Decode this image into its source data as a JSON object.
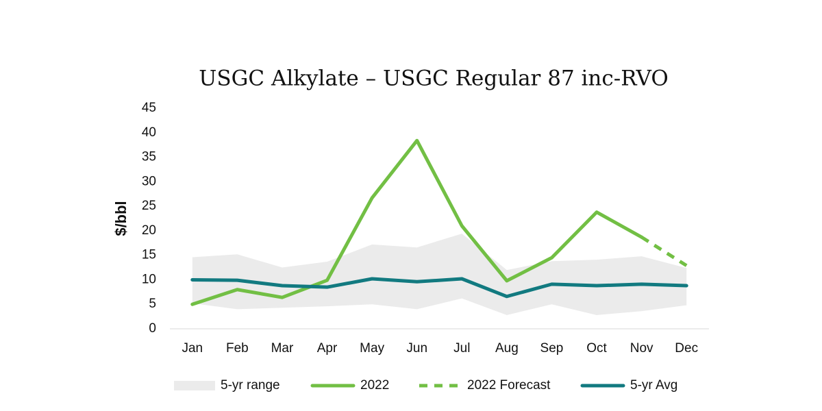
{
  "chart_data": {
    "type": "line",
    "title": "USGC Alkylate – USGC Regular 87 inc-RVO",
    "y_label": "$/bbl",
    "categories": [
      "Jan",
      "Feb",
      "Mar",
      "Apr",
      "May",
      "Jun",
      "Jul",
      "Aug",
      "Sep",
      "Oct",
      "Nov",
      "Dec"
    ],
    "ylim": [
      0,
      45
    ],
    "yticks": [
      0,
      5,
      10,
      15,
      20,
      25,
      30,
      35,
      40,
      45
    ],
    "grid": false,
    "legend": "bottom",
    "range": {
      "name": "5-yr range",
      "color": "#ebebeb",
      "low": [
        5.2,
        4,
        4.3,
        4.6,
        5,
        4,
        6.2,
        2.8,
        5,
        2.8,
        3.6,
        4.8
      ],
      "high": [
        14.6,
        15.2,
        12.5,
        13.7,
        17.2,
        16.6,
        19.4,
        12,
        13.8,
        14.1,
        14.8,
        12.4
      ]
    },
    "series": [
      {
        "name": "2022",
        "color": "#72bf44",
        "dash": false,
        "values": [
          5,
          8,
          6.4,
          9.9,
          26.7,
          38.4,
          21,
          9.8,
          14.5,
          23.8,
          18.7,
          null
        ]
      },
      {
        "name": "2022 Forecast",
        "color": "#72bf44",
        "dash": true,
        "values": [
          null,
          null,
          null,
          null,
          null,
          null,
          null,
          null,
          null,
          null,
          18.7,
          12.9
        ]
      },
      {
        "name": "5-yr Avg",
        "color": "#127a80",
        "dash": false,
        "values": [
          10,
          9.9,
          8.8,
          8.5,
          10.2,
          9.6,
          10.2,
          6.6,
          9.1,
          8.8,
          9.1,
          8.8
        ]
      }
    ]
  }
}
